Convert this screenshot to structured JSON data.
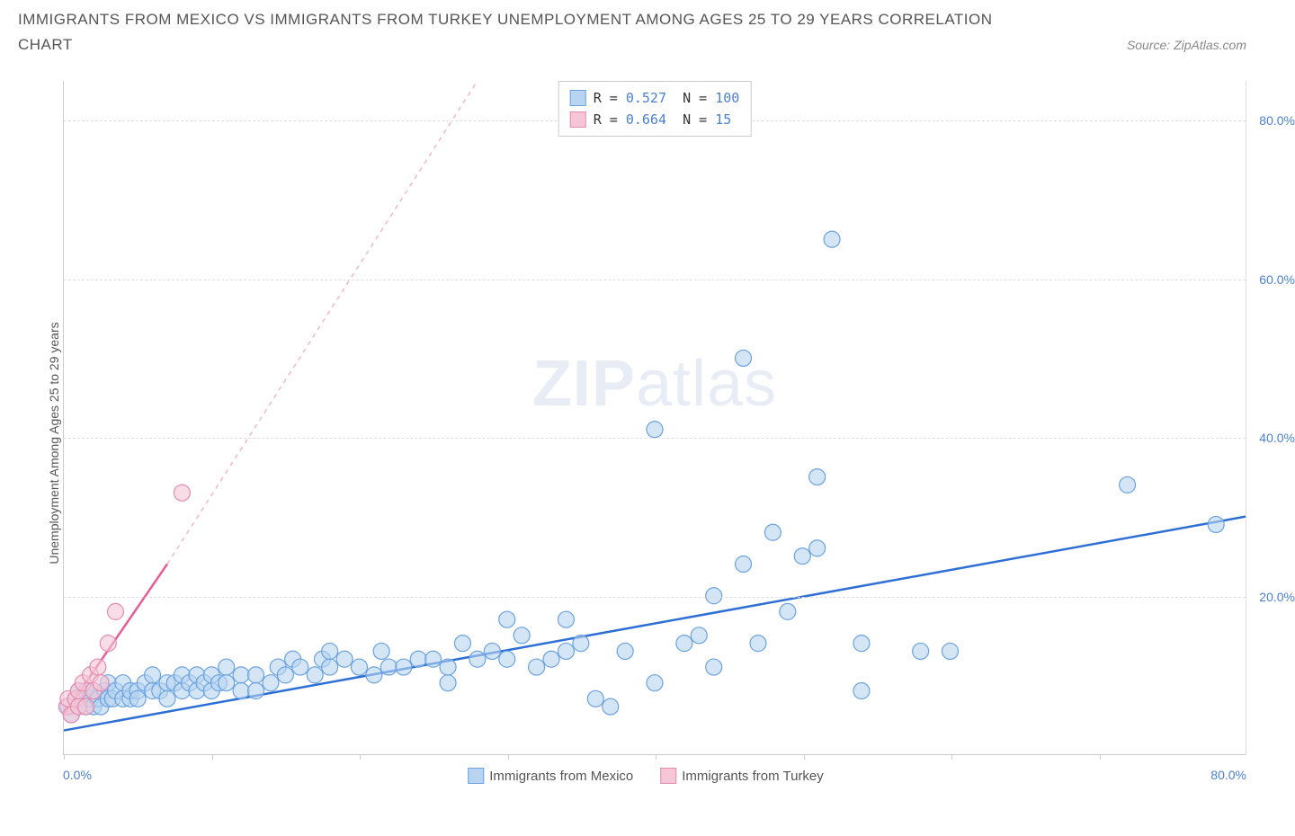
{
  "title_line1": "IMMIGRANTS FROM MEXICO VS IMMIGRANTS FROM TURKEY UNEMPLOYMENT AMONG AGES 25 TO 29 YEARS CORRELATION",
  "title_line2": "CHART",
  "source_label": "Source: ZipAtlas.com",
  "y_axis_label": "Unemployment Among Ages 25 to 29 years",
  "watermark_a": "ZIP",
  "watermark_b": "atlas",
  "chart": {
    "type": "scatter",
    "xlim": [
      0,
      80
    ],
    "ylim": [
      0,
      85
    ],
    "x_ticks_minor": [
      0,
      10,
      20,
      30,
      40,
      50,
      60,
      70
    ],
    "x_tick_labels": [
      {
        "v": 0,
        "t": "0.0%"
      },
      {
        "v": 80,
        "t": "80.0%"
      }
    ],
    "y_tick_labels": [
      {
        "v": 20,
        "t": "20.0%"
      },
      {
        "v": 40,
        "t": "40.0%"
      },
      {
        "v": 60,
        "t": "60.0%"
      },
      {
        "v": 80,
        "t": "80.0%"
      }
    ],
    "y_gridlines": [
      20,
      40,
      60,
      80
    ],
    "background_color": "#ffffff",
    "grid_color": "#dddddd",
    "axis_color": "#cccccc",
    "series": [
      {
        "name": "Immigrants from Mexico",
        "color_fill": "#b8d4f0",
        "color_stroke": "#6aa3e0",
        "marker_radius": 9,
        "fill_opacity": 0.6,
        "trend": {
          "x1": 0,
          "y1": 3,
          "x2": 80,
          "y2": 30,
          "stroke": "#2e6fd6",
          "width": 2.5,
          "dash": "none",
          "extend_dash_to_y": null
        },
        "points": [
          [
            0.3,
            6
          ],
          [
            0.5,
            5
          ],
          [
            0.8,
            7
          ],
          [
            1,
            6
          ],
          [
            1,
            8
          ],
          [
            1.2,
            7
          ],
          [
            1.5,
            6
          ],
          [
            1.5,
            8
          ],
          [
            1.8,
            7
          ],
          [
            2,
            6
          ],
          [
            2,
            8
          ],
          [
            2.3,
            7
          ],
          [
            2.5,
            6
          ],
          [
            2.8,
            8
          ],
          [
            3,
            7
          ],
          [
            3,
            9
          ],
          [
            3.3,
            7
          ],
          [
            3.5,
            8
          ],
          [
            4,
            7
          ],
          [
            4,
            9
          ],
          [
            4.5,
            7
          ],
          [
            4.5,
            8
          ],
          [
            5,
            8
          ],
          [
            5,
            7
          ],
          [
            5.5,
            9
          ],
          [
            6,
            8
          ],
          [
            6,
            10
          ],
          [
            6.5,
            8
          ],
          [
            7,
            9
          ],
          [
            7,
            7
          ],
          [
            7.5,
            9
          ],
          [
            8,
            8
          ],
          [
            8,
            10
          ],
          [
            8.5,
            9
          ],
          [
            9,
            8
          ],
          [
            9,
            10
          ],
          [
            9.5,
            9
          ],
          [
            10,
            8
          ],
          [
            10,
            10
          ],
          [
            10.5,
            9
          ],
          [
            11,
            9
          ],
          [
            11,
            11
          ],
          [
            12,
            10
          ],
          [
            12,
            8
          ],
          [
            13,
            10
          ],
          [
            13,
            8
          ],
          [
            14,
            9
          ],
          [
            14.5,
            11
          ],
          [
            15,
            10
          ],
          [
            15.5,
            12
          ],
          [
            16,
            11
          ],
          [
            17,
            10
          ],
          [
            17.5,
            12
          ],
          [
            18,
            11
          ],
          [
            18,
            13
          ],
          [
            19,
            12
          ],
          [
            20,
            11
          ],
          [
            21,
            10
          ],
          [
            21.5,
            13
          ],
          [
            22,
            11
          ],
          [
            23,
            11
          ],
          [
            24,
            12
          ],
          [
            25,
            12
          ],
          [
            26,
            9
          ],
          [
            26,
            11
          ],
          [
            27,
            14
          ],
          [
            28,
            12
          ],
          [
            29,
            13
          ],
          [
            30,
            12
          ],
          [
            30,
            17
          ],
          [
            31,
            15
          ],
          [
            32,
            11
          ],
          [
            33,
            12
          ],
          [
            34,
            13
          ],
          [
            34,
            17
          ],
          [
            35,
            14
          ],
          [
            36,
            7
          ],
          [
            37,
            6
          ],
          [
            38,
            13
          ],
          [
            40,
            9
          ],
          [
            40,
            41
          ],
          [
            42,
            14
          ],
          [
            43,
            15
          ],
          [
            44,
            11
          ],
          [
            44,
            20
          ],
          [
            46,
            24
          ],
          [
            46,
            50
          ],
          [
            47,
            14
          ],
          [
            48,
            28
          ],
          [
            49,
            18
          ],
          [
            50,
            25
          ],
          [
            51,
            26
          ],
          [
            51,
            35
          ],
          [
            52,
            65
          ],
          [
            54,
            14
          ],
          [
            54,
            8
          ],
          [
            58,
            13
          ],
          [
            60,
            13
          ],
          [
            72,
            34
          ],
          [
            78,
            29
          ]
        ]
      },
      {
        "name": "Immigrants from Turkey",
        "color_fill": "#f5c6d6",
        "color_stroke": "#e48bb0",
        "marker_radius": 9,
        "fill_opacity": 0.6,
        "trend": {
          "x1": 0,
          "y1": 5,
          "x2": 7,
          "y2": 24,
          "stroke": "#e85a9a",
          "width": 2.5,
          "dash": "none",
          "extend_dash_to_y": 85,
          "extend_dash_x2": 28,
          "dash_stroke": "#f0b8c8"
        },
        "points": [
          [
            0.2,
            6
          ],
          [
            0.3,
            7
          ],
          [
            0.5,
            5
          ],
          [
            0.8,
            7
          ],
          [
            1,
            6
          ],
          [
            1,
            8
          ],
          [
            1.3,
            9
          ],
          [
            1.5,
            6
          ],
          [
            1.8,
            10
          ],
          [
            2,
            8
          ],
          [
            2.3,
            11
          ],
          [
            2.5,
            9
          ],
          [
            3,
            14
          ],
          [
            3.5,
            18
          ],
          [
            8,
            33
          ]
        ]
      }
    ],
    "legend_box": [
      {
        "swatch_fill": "#b8d4f0",
        "swatch_stroke": "#6aa3e0",
        "r_label": "R =",
        "r_val": "0.527",
        "n_label": "N =",
        "n_val": "100"
      },
      {
        "swatch_fill": "#f5c6d6",
        "swatch_stroke": "#e48bb0",
        "r_label": "R =",
        "r_val": "0.664",
        "n_label": "N =",
        "n_val": " 15"
      }
    ],
    "bottom_legend": [
      {
        "swatch_fill": "#b8d4f0",
        "swatch_stroke": "#6aa3e0",
        "label": "Immigrants from Mexico"
      },
      {
        "swatch_fill": "#f5c6d6",
        "swatch_stroke": "#e48bb0",
        "label": "Immigrants from Turkey"
      }
    ]
  }
}
